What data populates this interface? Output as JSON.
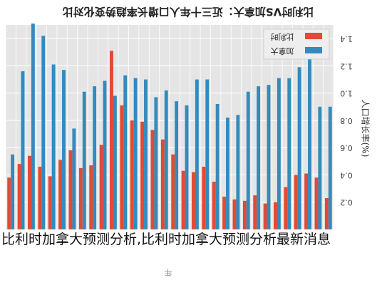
{
  "chart_data": {
    "type": "bar",
    "title": "比利时VS加拿大：近三十年人口增长率趋势变化对比",
    "ylabel": "人口增长率(%)",
    "xlabel": "年",
    "ylim": [
      0,
      1.5
    ],
    "yticks": [
      0.2,
      0.4,
      0.6,
      0.8,
      1.0,
      1.2,
      1.4
    ],
    "grid": true,
    "legend_position": "top-right",
    "categories": [
      "",
      "",
      "",
      "",
      "",
      "",
      "",
      "",
      "",
      "",
      "",
      "",
      "",
      "",
      "",
      "",
      "",
      "",
      "",
      "",
      "",
      "",
      "",
      "",
      "",
      "",
      "",
      "",
      "",
      "",
      "",
      ""
    ],
    "series": [
      {
        "name": "比利时",
        "color": "#e24a33",
        "values": [
          0.38,
          0.48,
          0.54,
          0.46,
          0.39,
          0.51,
          0.58,
          0.45,
          0.47,
          0.62,
          1.31,
          0.91,
          0.8,
          0.79,
          0.73,
          0.66,
          0.55,
          0.43,
          0.42,
          0.46,
          0.35,
          0.24,
          0.22,
          0.21,
          0.25,
          0.19,
          0.2,
          0.31,
          0.4,
          0.41,
          0.38,
          0.23
        ]
      },
      {
        "name": "加拿大",
        "color": "#348abd",
        "values": [
          0.55,
          1.16,
          1.51,
          1.42,
          1.21,
          1.17,
          0.74,
          1.01,
          1.05,
          1.09,
          0.98,
          1.13,
          1.11,
          1.1,
          0.97,
          1.02,
          0.94,
          0.91,
          1.1,
          1.1,
          0.92,
          0.82,
          0.84,
          1.01,
          1.05,
          1.06,
          1.11,
          1.11,
          1.19,
          1.26,
          0.9,
          0.9
        ]
      }
    ]
  },
  "caption": "比利时加拿大预测分析,比利时加拿大预测分析最新消息"
}
